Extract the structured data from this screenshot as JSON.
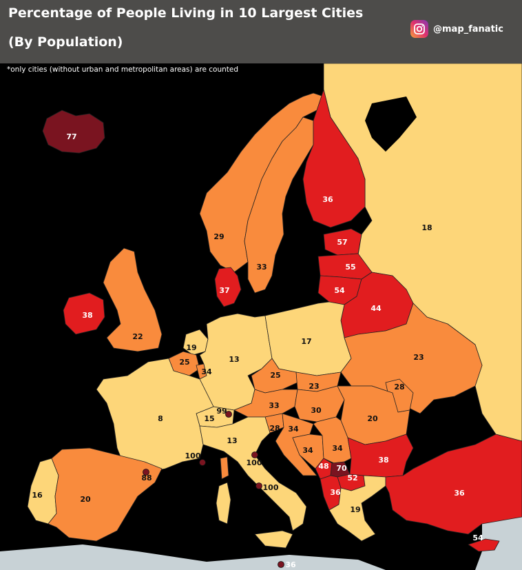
{
  "header": {
    "title_line1": "Percentage of People Living in 10 Largest Cities",
    "title_line2": "(By Population)",
    "handle": "@map_fanatic"
  },
  "note": "*only cities (without urban and metropolitan areas) are counted",
  "colors": {
    "very_low": "#fdd679",
    "low": "#f98b3d",
    "high": "#e11d1f",
    "very_high": "#7a1420",
    "sea": "#000000",
    "outside": "#c8d2d6"
  },
  "regions": [
    {
      "id": "iceland",
      "value": "77"
    },
    {
      "id": "norway",
      "value": "29"
    },
    {
      "id": "sweden",
      "value": "33"
    },
    {
      "id": "finland",
      "value": "36"
    },
    {
      "id": "russia",
      "value": "18"
    },
    {
      "id": "estonia",
      "value": "57"
    },
    {
      "id": "latvia",
      "value": "55"
    },
    {
      "id": "lithuania",
      "value": "54"
    },
    {
      "id": "belarus",
      "value": "44"
    },
    {
      "id": "denmark",
      "value": "37"
    },
    {
      "id": "ireland",
      "value": "38"
    },
    {
      "id": "uk",
      "value": "22"
    },
    {
      "id": "netherlands",
      "value": "19"
    },
    {
      "id": "belgium",
      "value": "25"
    },
    {
      "id": "luxembourg",
      "value": "34"
    },
    {
      "id": "germany",
      "value": "13"
    },
    {
      "id": "poland",
      "value": "17"
    },
    {
      "id": "ukraine",
      "value": "23"
    },
    {
      "id": "moldova",
      "value": "28"
    },
    {
      "id": "czechia",
      "value": "25"
    },
    {
      "id": "slovakia",
      "value": "23"
    },
    {
      "id": "austria",
      "value": "33"
    },
    {
      "id": "hungary",
      "value": "30"
    },
    {
      "id": "romania",
      "value": "20"
    },
    {
      "id": "liechtenstein",
      "value": "99"
    },
    {
      "id": "switzerland",
      "value": "15"
    },
    {
      "id": "france",
      "value": "8"
    },
    {
      "id": "slovenia",
      "value": "28"
    },
    {
      "id": "croatia",
      "value": "34"
    },
    {
      "id": "bosnia",
      "value": "34"
    },
    {
      "id": "serbia",
      "value": "34"
    },
    {
      "id": "italy",
      "value": "13"
    },
    {
      "id": "monaco",
      "value": "100"
    },
    {
      "id": "san-marino",
      "value": "100"
    },
    {
      "id": "vatican",
      "value": "100"
    },
    {
      "id": "andorra",
      "value": "88"
    },
    {
      "id": "montenegro",
      "value": "48"
    },
    {
      "id": "kosovo",
      "value": "70"
    },
    {
      "id": "north-macedonia",
      "value": "52"
    },
    {
      "id": "albania",
      "value": "36"
    },
    {
      "id": "bulgaria",
      "value": "38"
    },
    {
      "id": "greece",
      "value": "19"
    },
    {
      "id": "turkey",
      "value": "36"
    },
    {
      "id": "cyprus",
      "value": "54"
    },
    {
      "id": "malta",
      "value": "36"
    },
    {
      "id": "portugal",
      "value": "16"
    },
    {
      "id": "spain",
      "value": "20"
    }
  ]
}
